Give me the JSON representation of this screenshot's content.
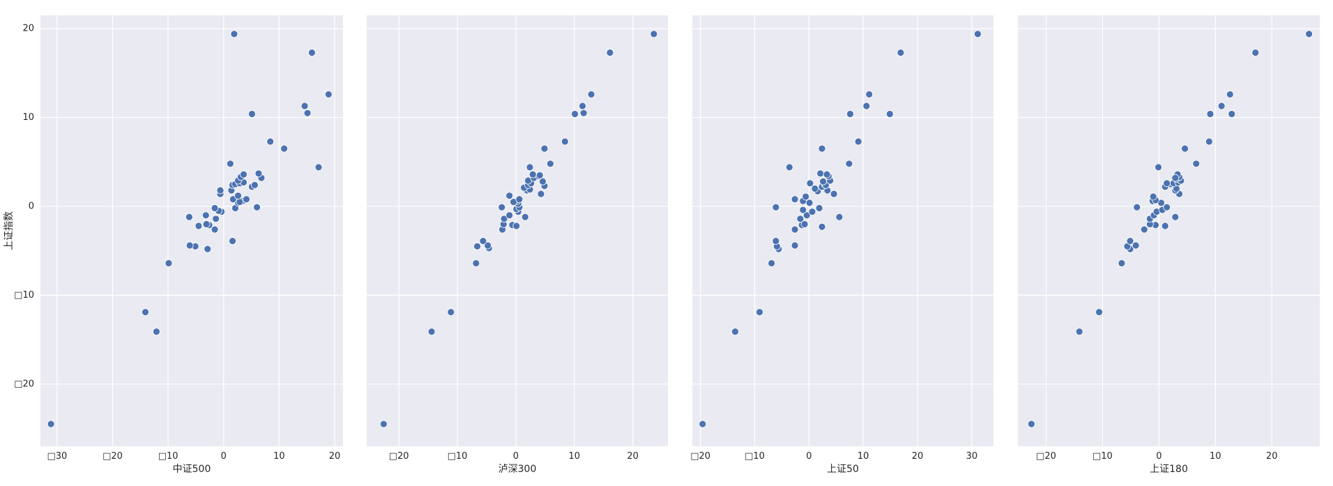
{
  "chart_data": {
    "type": "scatter",
    "style": "seaborn-darkgrid",
    "background_color": "#eaeaf2",
    "grid_color": "#ffffff",
    "marker_color": "#4c72b0",
    "marker_edge_color": "#ffffff",
    "shared_y": true,
    "grid": true,
    "ylabel": "上证指数",
    "ylim": [
      -27,
      21.5
    ],
    "yticks": [
      20,
      10,
      0,
      -10,
      -20
    ],
    "ytick_labels": [
      "20",
      "10",
      "0",
      "□10",
      "□20"
    ],
    "panels": [
      {
        "xlabel": "中证500",
        "xlim": [
          -33,
          21.5
        ],
        "xticks": [
          -30,
          -20,
          -10,
          0,
          10,
          20
        ],
        "xtick_labels": [
          "□30",
          "□20",
          "□10",
          "0",
          "10",
          "20"
        ],
        "points": [
          [
            -31.1,
            -24.5
          ],
          [
            -12.1,
            -14.1
          ],
          [
            -14.1,
            -11.9
          ],
          [
            -9.9,
            -6.4
          ],
          [
            -2.9,
            -4.8
          ],
          [
            -5.1,
            -4.5
          ],
          [
            -6.1,
            -4.4
          ],
          [
            1.6,
            -3.9
          ],
          [
            -1.6,
            -2.6
          ],
          [
            -4.5,
            -2.2
          ],
          [
            -2.6,
            -2.1
          ],
          [
            -3.1,
            -2.0
          ],
          [
            -6.2,
            -1.2
          ],
          [
            -1.4,
            -1.4
          ],
          [
            -3.2,
            -1.0
          ],
          [
            -0.4,
            -0.6
          ],
          [
            -0.9,
            -0.5
          ],
          [
            -1.6,
            -0.2
          ],
          [
            2.1,
            -0.2
          ],
          [
            6.0,
            -0.1
          ],
          [
            2.6,
            0.4
          ],
          [
            3.4,
            0.6
          ],
          [
            2.9,
            0.5
          ],
          [
            4.1,
            0.8
          ],
          [
            1.7,
            0.8
          ],
          [
            2.6,
            1.2
          ],
          [
            -0.6,
            1.4
          ],
          [
            -0.6,
            1.8
          ],
          [
            1.4,
            1.8
          ],
          [
            5.1,
            2.2
          ],
          [
            5.6,
            2.4
          ],
          [
            1.6,
            2.4
          ],
          [
            2.1,
            2.5
          ],
          [
            2.9,
            2.6
          ],
          [
            3.6,
            2.7
          ],
          [
            2.6,
            2.9
          ],
          [
            6.8,
            3.2
          ],
          [
            3.1,
            3.3
          ],
          [
            3.6,
            3.6
          ],
          [
            6.3,
            3.7
          ],
          [
            1.2,
            4.8
          ],
          [
            17.1,
            4.4
          ],
          [
            10.9,
            6.5
          ],
          [
            8.4,
            7.3
          ],
          [
            5.1,
            10.4
          ],
          [
            15.1,
            10.5
          ],
          [
            14.6,
            11.3
          ],
          [
            18.9,
            12.6
          ],
          [
            15.9,
            17.3
          ],
          [
            1.9,
            19.4
          ]
        ]
      },
      {
        "xlabel": "泸深300",
        "xlim": [
          -25.5,
          26
        ],
        "xticks": [
          -20,
          -10,
          0,
          10,
          20
        ],
        "xtick_labels": [
          "□20",
          "□10",
          "0",
          "10",
          "20"
        ],
        "points": [
          [
            -22.6,
            -24.5
          ],
          [
            -14.4,
            -14.1
          ],
          [
            -11.1,
            -11.9
          ],
          [
            -6.8,
            -6.4
          ],
          [
            -4.6,
            -4.7
          ],
          [
            -4.8,
            -4.4
          ],
          [
            -6.6,
            -4.5
          ],
          [
            -5.6,
            -3.9
          ],
          [
            -2.3,
            -2.6
          ],
          [
            -0.6,
            -2.1
          ],
          [
            0.1,
            -2.2
          ],
          [
            -2.1,
            -2.0
          ],
          [
            1.6,
            -1.2
          ],
          [
            -2.0,
            -1.4
          ],
          [
            -1.1,
            -1.0
          ],
          [
            0.4,
            -0.6
          ],
          [
            0.1,
            -0.3
          ],
          [
            0.6,
            -0.1
          ],
          [
            -2.4,
            -0.1
          ],
          [
            0.4,
            0.3
          ],
          [
            0.2,
            0.6
          ],
          [
            -0.4,
            0.5
          ],
          [
            0.6,
            0.8
          ],
          [
            -1.1,
            1.2
          ],
          [
            4.3,
            1.4
          ],
          [
            1.9,
            1.8
          ],
          [
            2.4,
            1.9
          ],
          [
            1.4,
            2.1
          ],
          [
            4.9,
            2.3
          ],
          [
            2.1,
            2.4
          ],
          [
            2.6,
            2.6
          ],
          [
            4.6,
            2.8
          ],
          [
            2.1,
            2.9
          ],
          [
            3.1,
            3.2
          ],
          [
            3.9,
            3.4
          ],
          [
            2.9,
            3.6
          ],
          [
            4.1,
            3.5
          ],
          [
            2.4,
            4.4
          ],
          [
            5.9,
            4.8
          ],
          [
            4.9,
            6.5
          ],
          [
            8.4,
            7.3
          ],
          [
            10.1,
            10.4
          ],
          [
            11.6,
            10.5
          ],
          [
            11.4,
            11.3
          ],
          [
            12.9,
            12.6
          ],
          [
            16.1,
            17.3
          ],
          [
            23.6,
            19.4
          ]
        ]
      },
      {
        "xlabel": "上证50",
        "xlim": [
          -21.5,
          34
        ],
        "xticks": [
          -20,
          -10,
          0,
          10,
          20,
          30
        ],
        "xtick_labels": [
          "□20",
          "□10",
          "0",
          "10",
          "20",
          "30"
        ],
        "points": [
          [
            -19.6,
            -24.5
          ],
          [
            -13.6,
            -14.1
          ],
          [
            -9.1,
            -11.9
          ],
          [
            -6.9,
            -6.4
          ],
          [
            -5.6,
            -4.8
          ],
          [
            -5.9,
            -4.5
          ],
          [
            -2.6,
            -4.4
          ],
          [
            -6.1,
            -3.9
          ],
          [
            -2.6,
            -2.6
          ],
          [
            2.4,
            -2.3
          ],
          [
            -1.3,
            -2.1
          ],
          [
            -0.8,
            -2.0
          ],
          [
            5.6,
            -1.2
          ],
          [
            -1.6,
            -1.4
          ],
          [
            -0.4,
            -1.0
          ],
          [
            0.6,
            -0.6
          ],
          [
            -1.1,
            -0.4
          ],
          [
            -6.1,
            -0.1
          ],
          [
            1.9,
            -0.2
          ],
          [
            0.1,
            0.4
          ],
          [
            -2.6,
            0.8
          ],
          [
            -1.1,
            0.6
          ],
          [
            -0.6,
            1.1
          ],
          [
            4.6,
            1.4
          ],
          [
            1.6,
            1.7
          ],
          [
            3.4,
            1.8
          ],
          [
            1.1,
            2.0
          ],
          [
            2.4,
            2.2
          ],
          [
            0.2,
            2.6
          ],
          [
            2.9,
            2.5
          ],
          [
            3.1,
            2.4
          ],
          [
            2.6,
            2.8
          ],
          [
            3.9,
            2.9
          ],
          [
            2.1,
            3.7
          ],
          [
            3.6,
            3.4
          ],
          [
            3.3,
            3.6
          ],
          [
            -3.6,
            4.4
          ],
          [
            7.4,
            4.8
          ],
          [
            2.4,
            6.5
          ],
          [
            9.1,
            7.3
          ],
          [
            7.6,
            10.4
          ],
          [
            14.9,
            10.4
          ],
          [
            10.6,
            11.3
          ],
          [
            11.1,
            12.6
          ],
          [
            16.9,
            17.3
          ],
          [
            31.1,
            19.4
          ]
        ]
      },
      {
        "xlabel": "上证180",
        "xlim": [
          -25,
          28.5
        ],
        "xticks": [
          -20,
          -10,
          0,
          10,
          20
        ],
        "xtick_labels": [
          "□20",
          "□10",
          "0",
          "10",
          "20"
        ],
        "points": [
          [
            -22.6,
            -24.5
          ],
          [
            -14.1,
            -14.1
          ],
          [
            -10.6,
            -11.9
          ],
          [
            -6.6,
            -6.4
          ],
          [
            -5.1,
            -4.8
          ],
          [
            -5.6,
            -4.5
          ],
          [
            -4.1,
            -4.4
          ],
          [
            -5.1,
            -3.9
          ],
          [
            -2.6,
            -2.6
          ],
          [
            -0.6,
            -2.1
          ],
          [
            1.1,
            -2.2
          ],
          [
            -1.6,
            -2.0
          ],
          [
            2.9,
            -1.2
          ],
          [
            -1.6,
            -1.4
          ],
          [
            -0.9,
            -1.0
          ],
          [
            -0.4,
            -0.6
          ],
          [
            0.6,
            -0.4
          ],
          [
            -3.9,
            -0.1
          ],
          [
            1.4,
            -0.1
          ],
          [
            0.4,
            0.4
          ],
          [
            -1.1,
            0.6
          ],
          [
            -0.6,
            0.7
          ],
          [
            -1.0,
            1.1
          ],
          [
            3.6,
            1.4
          ],
          [
            2.9,
            1.8
          ],
          [
            1.1,
            2.2
          ],
          [
            3.1,
            2.0
          ],
          [
            2.1,
            2.5
          ],
          [
            2.6,
            2.6
          ],
          [
            3.4,
            2.7
          ],
          [
            1.4,
            2.6
          ],
          [
            3.9,
            2.9
          ],
          [
            3.1,
            3.1
          ],
          [
            3.6,
            3.3
          ],
          [
            3.3,
            3.6
          ],
          [
            2.9,
            3.2
          ],
          [
            -0.1,
            4.4
          ],
          [
            6.6,
            4.8
          ],
          [
            4.6,
            6.5
          ],
          [
            8.9,
            7.3
          ],
          [
            9.1,
            10.4
          ],
          [
            12.9,
            10.4
          ],
          [
            11.1,
            11.3
          ],
          [
            12.6,
            12.6
          ],
          [
            17.1,
            17.3
          ],
          [
            26.6,
            19.4
          ]
        ]
      }
    ]
  }
}
